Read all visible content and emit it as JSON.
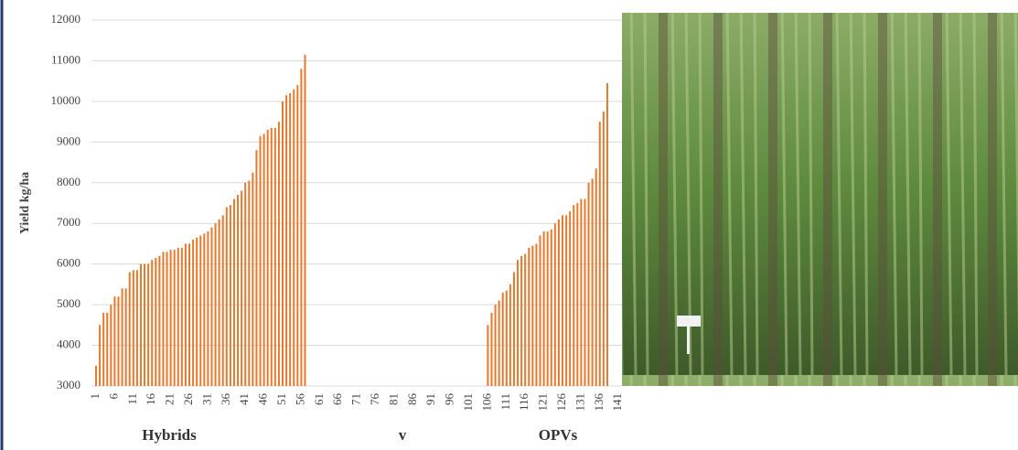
{
  "chart_data": {
    "type": "bar",
    "y_label": "Yield kg/ha",
    "group_labels": [
      "Hybrids",
      "v",
      "OPVs"
    ],
    "color": "#e8792b",
    "ylim": [
      3000,
      12000
    ],
    "yticks": [
      3000,
      4000,
      5000,
      6000,
      7000,
      8000,
      9000,
      10000,
      11000,
      12000
    ],
    "grid": true,
    "categories": [
      "1",
      null,
      null,
      null,
      null,
      "6",
      null,
      null,
      null,
      null,
      "11",
      null,
      null,
      null,
      null,
      "16",
      null,
      null,
      null,
      null,
      "21",
      null,
      null,
      null,
      null,
      "26",
      null,
      null,
      null,
      null,
      "31",
      null,
      null,
      null,
      null,
      "36",
      null,
      null,
      null,
      null,
      "41",
      null,
      null,
      null,
      null,
      "46",
      null,
      null,
      null,
      null,
      "51",
      null,
      null,
      null,
      null,
      "56",
      null,
      null,
      null,
      null,
      "61",
      null,
      null,
      null,
      null,
      "66",
      null,
      null,
      null,
      null,
      "71",
      null,
      null,
      null,
      null,
      "76",
      null,
      null,
      null,
      null,
      "81",
      null,
      null,
      null,
      null,
      "86",
      null,
      null,
      null,
      null,
      "91",
      null,
      null,
      null,
      null,
      "96",
      null,
      null,
      null,
      null,
      "101",
      null,
      null,
      null,
      null,
      "106",
      null,
      null,
      null,
      null,
      "111",
      null,
      null,
      null,
      null,
      "116",
      null,
      null,
      null,
      null,
      "121",
      null,
      null,
      null,
      null,
      "126",
      null,
      null,
      null,
      null,
      "131",
      null,
      null,
      null,
      null,
      "136",
      null,
      null,
      null,
      null,
      "141"
    ],
    "values": [
      3500,
      4500,
      4800,
      4800,
      5000,
      5200,
      5200,
      5400,
      5400,
      5800,
      5850,
      5850,
      6000,
      6000,
      6000,
      6100,
      6150,
      6200,
      6300,
      6300,
      6350,
      6350,
      6400,
      6400,
      6500,
      6500,
      6600,
      6650,
      6700,
      6750,
      6800,
      6900,
      7000,
      7100,
      7200,
      7400,
      7450,
      7600,
      7700,
      7800,
      8000,
      8050,
      8250,
      8800,
      9150,
      9200,
      9300,
      9350,
      9350,
      9500,
      10000,
      10150,
      10200,
      10300,
      10400,
      10800,
      11150,
      null,
      null,
      null,
      null,
      null,
      null,
      null,
      null,
      null,
      null,
      null,
      null,
      null,
      null,
      null,
      null,
      null,
      null,
      null,
      null,
      null,
      null,
      null,
      null,
      null,
      null,
      null,
      null,
      null,
      null,
      null,
      null,
      null,
      null,
      null,
      null,
      null,
      null,
      null,
      null,
      null,
      null,
      null,
      null,
      null,
      null,
      null,
      null,
      4500,
      4800,
      5000,
      5100,
      5300,
      5350,
      5500,
      5800,
      6100,
      6200,
      6250,
      6400,
      6450,
      6500,
      6700,
      6800,
      6800,
      6850,
      7000,
      7100,
      7200,
      7200,
      7300,
      7450,
      7500,
      7600,
      7600,
      8000,
      8100,
      8350,
      9500,
      9750,
      10450,
      null,
      null,
      null
    ]
  }
}
